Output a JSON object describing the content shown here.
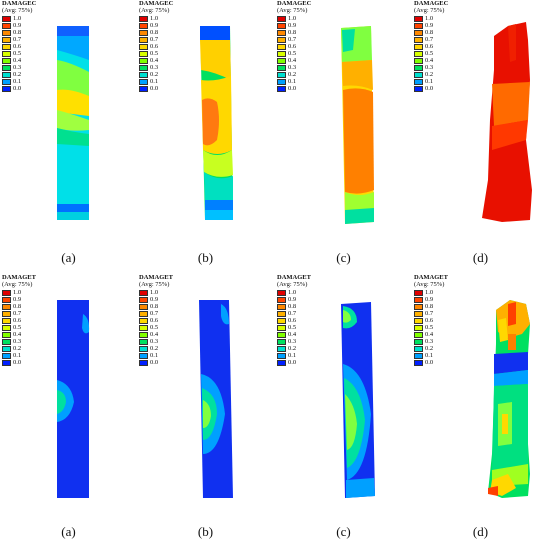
{
  "legend": {
    "damagec_title": "DAMAGEC",
    "damaget_title": "DAMAGET",
    "avg_label": "(Avg: 75%)",
    "ticks": [
      "1.0",
      "0.9",
      "0.8",
      "0.7",
      "0.6",
      "0.5",
      "0.4",
      "0.3",
      "0.2",
      "0.1",
      "0.0"
    ],
    "colors": [
      "#e00000",
      "#ff4400",
      "#ff8800",
      "#ffb000",
      "#ffd800",
      "#d8ff00",
      "#80ff00",
      "#00e060",
      "#00e0d0",
      "#00a0ff",
      "#0020ff"
    ]
  },
  "captions": {
    "top": [
      "(a)",
      "(b)",
      "(c)",
      "(d)"
    ],
    "bottom": [
      "(a)",
      "(b)",
      "(c)",
      "(d)"
    ]
  }
}
